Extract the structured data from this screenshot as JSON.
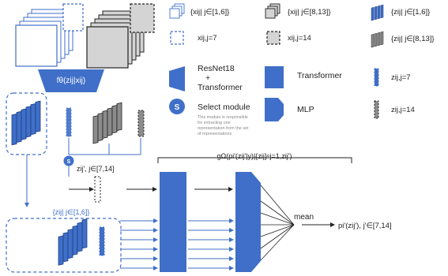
{
  "encoder": {
    "label": "fθ(zij|xij)"
  },
  "select_badge": "S",
  "legend": {
    "x_set_a": "{xij| j∈[1,6]}",
    "x_set_b": "{xij| j∈[8,13]}",
    "z_set_a": "{zij| j∈[1,6]}",
    "x_single_a": "xij,j=7",
    "x_single_b": "xij,j=14",
    "z_set_b": "{zij| j∈[8,13]}",
    "resnet_line1": "ResNet18",
    "resnet_line2": "+",
    "resnet_line3": "Transformer",
    "transformer": "Transformer",
    "z_single_a": "zij,j=7",
    "select_title": "Select module",
    "select_desc": [
      "This module is responsible",
      "for extracting one",
      "representation from the set",
      "of representations"
    ],
    "mlp": "MLP",
    "z_single_b": "zij,j=14"
  },
  "diagram": {
    "selected_label": "zij', j∈[7,14]",
    "set_label": "{zij| j∈[1,6]}",
    "g_label": "gΩ(pi'(zij'|y)|{zij}⁶j=1,zij')",
    "mean_label": "mean",
    "output_label": "pi'(zij'), j'∈[7,14]"
  },
  "colors": {
    "accent": "#3f6fc8",
    "gray": "#c8c8c8",
    "dark_gray": "#7a7a7a"
  }
}
